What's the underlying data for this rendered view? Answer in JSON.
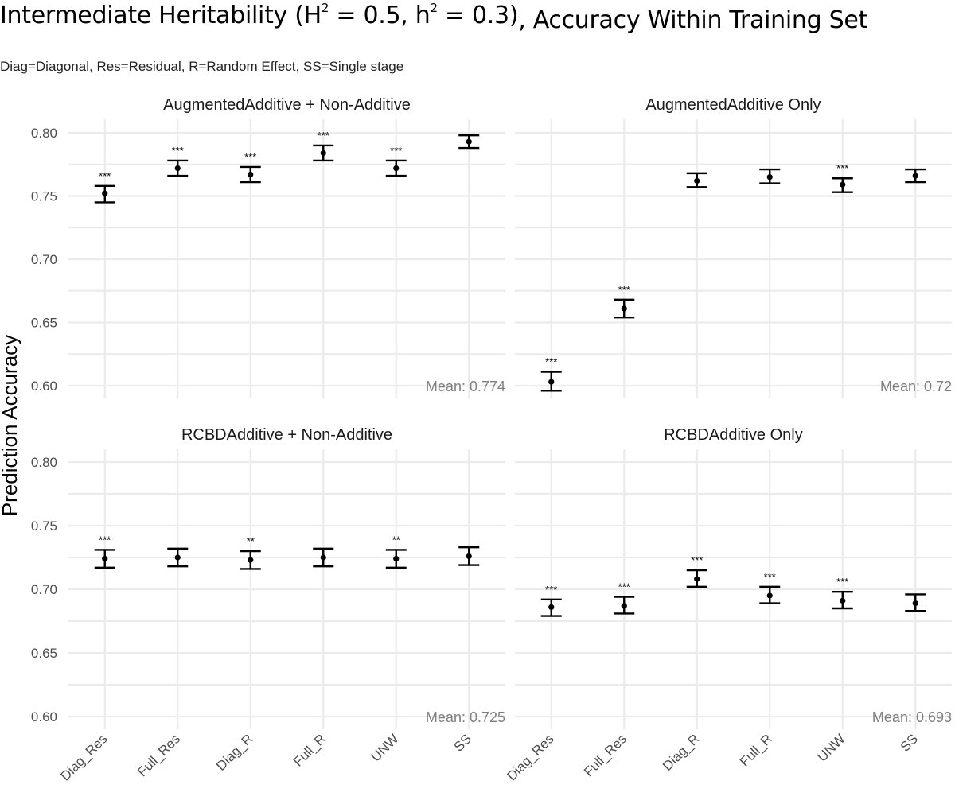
{
  "title": {
    "part1": "Intermediate Heritability (H",
    "sup1": "2",
    "part2": " = 0.5, h",
    "sup2": "2",
    "part3": " = 0.3)",
    "part4": ", Accuracy Within Training Set"
  },
  "subtitle": "Diag=Diagonal, Res=Residual, R=Random Effect, SS=Single stage",
  "chart_data": {
    "type": "errorbar",
    "ylabel": "Prediction Accuracy",
    "xlabel": "",
    "ylim": [
      0.59,
      0.81
    ],
    "yticks": [
      "0.60",
      "0.65",
      "0.70",
      "0.75",
      "0.80"
    ],
    "ytick_values": [
      0.6,
      0.65,
      0.7,
      0.75,
      0.8
    ],
    "categories": [
      "Diag_Res",
      "Full_Res",
      "Diag_R",
      "Full_R",
      "UNW",
      "SS"
    ],
    "grid": true,
    "panels": [
      {
        "label": "AugmentedAdditive + Non-Additive",
        "mean_label": "Mean: 0.774",
        "mean": [
          0.752,
          0.772,
          0.767,
          0.784,
          0.772,
          0.793
        ],
        "lower": [
          0.745,
          0.766,
          0.761,
          0.778,
          0.766,
          0.788
        ],
        "upper": [
          0.758,
          0.778,
          0.773,
          0.79,
          0.778,
          0.798
        ],
        "sig": [
          "***",
          "***",
          "***",
          "***",
          "***",
          ""
        ]
      },
      {
        "label": "AugmentedAdditive Only",
        "mean_label": "Mean: 0.72",
        "mean": [
          0.603,
          0.661,
          0.762,
          0.765,
          0.759,
          0.766
        ],
        "lower": [
          0.596,
          0.654,
          0.757,
          0.76,
          0.753,
          0.761
        ],
        "upper": [
          0.611,
          0.668,
          0.768,
          0.771,
          0.764,
          0.771
        ],
        "sig": [
          "***",
          "***",
          "",
          "",
          "***",
          ""
        ]
      },
      {
        "label": "RCBDAdditive + Non-Additive",
        "mean_label": "Mean: 0.725",
        "mean": [
          0.724,
          0.725,
          0.723,
          0.725,
          0.724,
          0.726
        ],
        "lower": [
          0.717,
          0.718,
          0.716,
          0.718,
          0.717,
          0.719
        ],
        "upper": [
          0.731,
          0.732,
          0.73,
          0.732,
          0.731,
          0.733
        ],
        "sig": [
          "***",
          "",
          "**",
          "",
          "**",
          ""
        ]
      },
      {
        "label": "RCBDAdditive Only",
        "mean_label": "Mean: 0.693",
        "mean": [
          0.686,
          0.687,
          0.708,
          0.695,
          0.691,
          0.689
        ],
        "lower": [
          0.679,
          0.681,
          0.702,
          0.689,
          0.685,
          0.683
        ],
        "upper": [
          0.692,
          0.694,
          0.715,
          0.702,
          0.698,
          0.696
        ],
        "sig": [
          "***",
          "***",
          "***",
          "***",
          "***",
          ""
        ]
      }
    ]
  }
}
